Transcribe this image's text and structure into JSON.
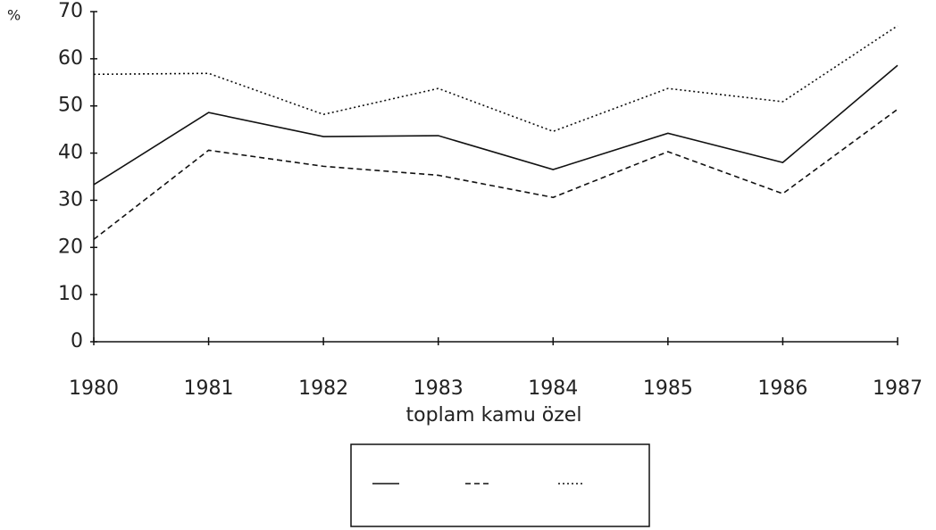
{
  "chart_data": {
    "type": "line",
    "y_label": "%",
    "x_label": "toplam kamu özel",
    "categories": [
      "1980",
      "1981",
      "1982",
      "1983",
      "1984",
      "1985",
      "1986",
      "1987"
    ],
    "series": [
      {
        "color": "#111111",
        "dash": "solid",
        "values": [
          33.3,
          48.6,
          43.5,
          43.7,
          36.5,
          44.2,
          38,
          58.6
        ]
      },
      {
        "color": "#111111",
        "dash": "dashed",
        "values": [
          21.7,
          40.6,
          37.2,
          35.3,
          30.6,
          40.3,
          31.4,
          49.3
        ]
      },
      {
        "color": "#111111",
        "dash": "dotted",
        "values": [
          56.7,
          56.9,
          48.2,
          53.7,
          44.6,
          53.7,
          50.9,
          67
        ]
      }
    ],
    "ylim": [
      0,
      70
    ],
    "yticks": [
      0,
      10,
      20,
      30,
      40,
      50,
      60,
      70
    ],
    "grid": false
  }
}
